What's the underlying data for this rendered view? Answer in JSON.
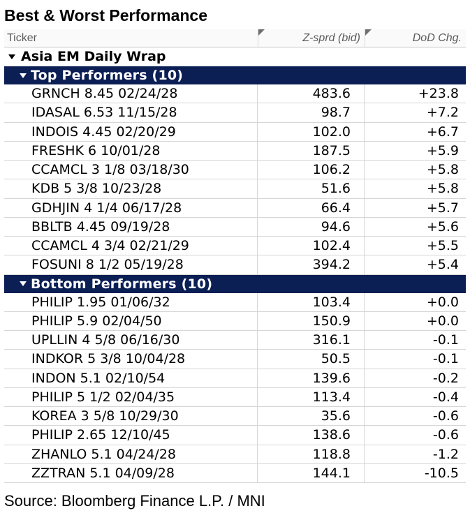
{
  "title": "Best & Worst Performance",
  "columns": {
    "ticker": "Ticker",
    "zsprd": "Z-sprd (bid)",
    "dod": "DoD Chg."
  },
  "group": "Asia EM Daily Wrap",
  "top": {
    "label": "Top Performers (10)",
    "rows": [
      {
        "ticker": "GRNCH 8.45 02/24/28",
        "zsprd": "483.6",
        "dod": "+23.8"
      },
      {
        "ticker": "IDASAL 6.53 11/15/28",
        "zsprd": "98.7",
        "dod": "+7.2"
      },
      {
        "ticker": "INDOIS 4.45 02/20/29",
        "zsprd": "102.0",
        "dod": "+6.7"
      },
      {
        "ticker": "FRESHK 6 10/01/28",
        "zsprd": "187.5",
        "dod": "+5.9"
      },
      {
        "ticker": "CCAMCL 3 1/8 03/18/30",
        "zsprd": "106.2",
        "dod": "+5.8"
      },
      {
        "ticker": "KDB 5 3/8 10/23/28",
        "zsprd": "51.6",
        "dod": "+5.8"
      },
      {
        "ticker": "GDHJIN 4 1/4 06/17/28",
        "zsprd": "66.4",
        "dod": "+5.7"
      },
      {
        "ticker": "BBLTB 4.45 09/19/28",
        "zsprd": "94.6",
        "dod": "+5.6"
      },
      {
        "ticker": "CCAMCL 4 3/4 02/21/29",
        "zsprd": "102.4",
        "dod": "+5.5"
      },
      {
        "ticker": "FOSUNI 8 1/2 05/19/28",
        "zsprd": "394.2",
        "dod": "+5.4"
      }
    ]
  },
  "bottom": {
    "label": "Bottom Performers (10)",
    "rows": [
      {
        "ticker": "PHILIP 1.95 01/06/32",
        "zsprd": "103.4",
        "dod": "+0.0"
      },
      {
        "ticker": "PHILIP 5.9 02/04/50",
        "zsprd": "150.9",
        "dod": "+0.0"
      },
      {
        "ticker": "UPLLIN 4 5/8 06/16/30",
        "zsprd": "316.1",
        "dod": "-0.1"
      },
      {
        "ticker": "INDKOR 5 3/8 10/04/28",
        "zsprd": "50.5",
        "dod": "-0.1"
      },
      {
        "ticker": "INDON 5.1 02/10/54",
        "zsprd": "139.6",
        "dod": "-0.2"
      },
      {
        "ticker": "PHILIP 5 1/2 02/04/35",
        "zsprd": "113.4",
        "dod": "-0.4"
      },
      {
        "ticker": "KOREA 3 5/8 10/29/30",
        "zsprd": "35.6",
        "dod": "-0.6"
      },
      {
        "ticker": "PHILIP 2.65 12/10/45",
        "zsprd": "138.6",
        "dod": "-0.6"
      },
      {
        "ticker": "ZHANLO 5.1 04/24/28",
        "zsprd": "118.8",
        "dod": "-1.2"
      },
      {
        "ticker": "ZZTRAN 5.1 04/09/28",
        "zsprd": "144.1",
        "dod": "-10.5"
      }
    ]
  },
  "source": "Source: Bloomberg Finance L.P. / MNI"
}
